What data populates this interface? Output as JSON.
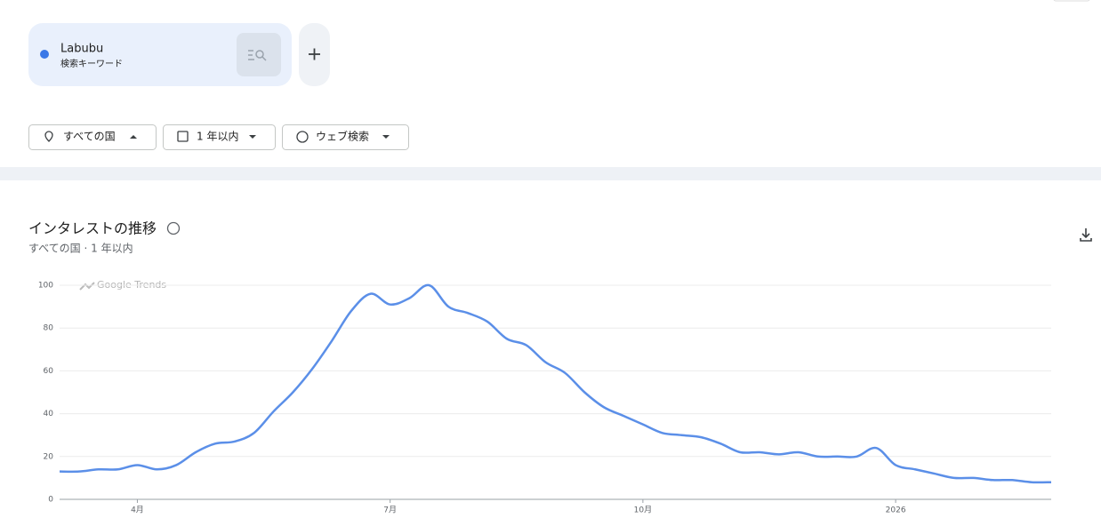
{
  "search": {
    "term": "Labubu",
    "term_type": "検索キーワード"
  },
  "filters": [
    "すべての国",
    "1 年以内",
    "ウェブ検索"
  ],
  "chart_data": {
    "type": "line",
    "title": "インタレストの推移",
    "subtitle": "すべての国 · 1 年以内",
    "watermark": "Google Trends",
    "categories": [
      null,
      null,
      null,
      null,
      "4月",
      null,
      null,
      null,
      null,
      null,
      null,
      null,
      null,
      null,
      null,
      null,
      null,
      "7月",
      null,
      null,
      null,
      null,
      null,
      null,
      null,
      null,
      null,
      null,
      null,
      null,
      "10月",
      null,
      null,
      null,
      null,
      null,
      null,
      null,
      null,
      null,
      null,
      null,
      null,
      "2026",
      null,
      null,
      null,
      null,
      null,
      null,
      null,
      null
    ],
    "values": [
      13,
      13,
      14,
      14,
      16,
      14,
      16,
      22,
      26,
      27,
      31,
      41,
      50,
      61,
      74,
      88,
      96,
      91,
      94,
      100,
      90,
      87,
      83,
      75,
      72,
      64,
      59,
      50,
      43,
      39,
      35,
      31,
      30,
      29,
      26,
      22,
      22,
      21,
      22,
      20,
      20,
      20,
      24,
      16,
      14,
      12,
      10,
      10,
      9,
      9,
      8,
      8
    ],
    "color": "#5b8fe8",
    "ylim": [
      0,
      100
    ],
    "yticks": [
      0,
      20,
      40,
      60,
      80,
      100
    ],
    "grid": true
  }
}
